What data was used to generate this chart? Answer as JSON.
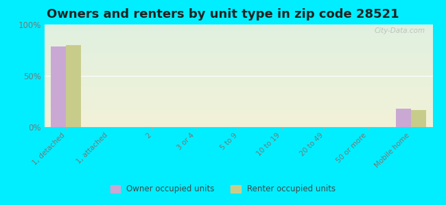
{
  "title": "Owners and renters by unit type in zip code 28521",
  "categories": [
    "1, detached",
    "1, attached",
    "2",
    "3 or 4",
    "5 to 9",
    "10 to 19",
    "20 to 49",
    "50 or more",
    "Mobile home"
  ],
  "owner_values": [
    79,
    0,
    0,
    0,
    0,
    0,
    0,
    0,
    18
  ],
  "renter_values": [
    80,
    0,
    0,
    0,
    0,
    0,
    0,
    0,
    17
  ],
  "owner_color": "#c9a8d4",
  "renter_color": "#c8cc8a",
  "background_color": "#00eeff",
  "grad_top": "#e0f0e0",
  "grad_bottom": "#f2f2d8",
  "yticks": [
    0,
    50,
    100
  ],
  "ylim": [
    0,
    100
  ],
  "watermark": "City-Data.com",
  "bar_width": 0.35,
  "tick_color": "#777777",
  "label_fontsize": 7.5,
  "ytick_fontsize": 8.5,
  "title_fontsize": 13
}
